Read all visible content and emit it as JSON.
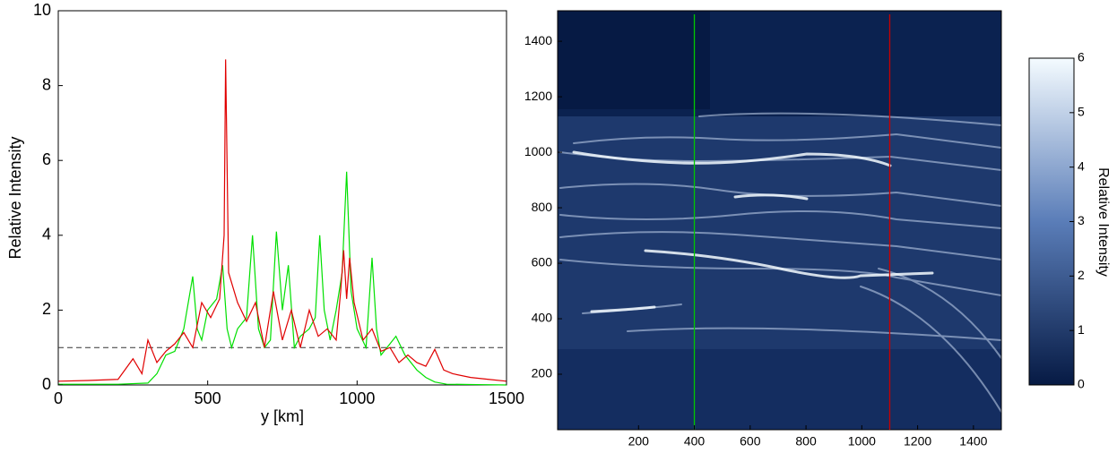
{
  "chart_data": [
    {
      "type": "line",
      "xlabel": "y [km]",
      "ylabel": "Relative Intensity",
      "xlim": [
        0,
        1500
      ],
      "xticks": [
        0,
        500,
        1000,
        1500
      ],
      "ylim": [
        0,
        10
      ],
      "yticks": [
        0,
        2,
        4,
        6,
        8,
        10
      ],
      "hlines": [
        {
          "value": 1,
          "color": "#333333",
          "style": "dashed"
        }
      ],
      "series": [
        {
          "color": "#00e000",
          "x": [
            0,
            100,
            200,
            300,
            330,
            360,
            390,
            420,
            450,
            465,
            480,
            500,
            530,
            550,
            565,
            580,
            600,
            630,
            650,
            670,
            690,
            710,
            730,
            750,
            770,
            790,
            810,
            840,
            860,
            875,
            890,
            910,
            930,
            950,
            965,
            980,
            1000,
            1030,
            1050,
            1065,
            1080,
            1100,
            1130,
            1160,
            1200,
            1230,
            1260,
            1300,
            1400,
            1500
          ],
          "values": [
            0.02,
            0.02,
            0.02,
            0.05,
            0.3,
            0.8,
            0.9,
            1.5,
            2.9,
            1.5,
            1.2,
            2.0,
            2.3,
            3.2,
            1.5,
            1.0,
            1.5,
            1.8,
            4.0,
            1.5,
            1.0,
            1.2,
            4.1,
            2.0,
            3.2,
            1.0,
            1.3,
            1.5,
            1.8,
            4.0,
            2.0,
            1.2,
            2.0,
            3.0,
            5.7,
            2.5,
            1.5,
            1.0,
            3.4,
            1.5,
            0.8,
            1.0,
            1.3,
            0.8,
            0.4,
            0.2,
            0.08,
            0.02,
            0.01,
            0
          ]
        },
        {
          "color": "#e00000",
          "x": [
            0,
            100,
            200,
            250,
            280,
            300,
            330,
            360,
            390,
            420,
            450,
            480,
            510,
            540,
            555,
            560,
            570,
            600,
            630,
            660,
            690,
            720,
            750,
            780,
            810,
            840,
            870,
            900,
            930,
            945,
            955,
            965,
            975,
            990,
            1020,
            1050,
            1080,
            1110,
            1140,
            1170,
            1200,
            1230,
            1260,
            1290,
            1320,
            1380,
            1440,
            1500
          ],
          "values": [
            0.1,
            0.12,
            0.15,
            0.7,
            0.3,
            1.2,
            0.6,
            0.9,
            1.1,
            1.4,
            1.0,
            2.2,
            1.8,
            2.3,
            4.0,
            8.7,
            3.0,
            2.2,
            1.7,
            2.2,
            1.0,
            2.5,
            1.2,
            2.0,
            1.0,
            2.0,
            1.3,
            1.5,
            1.2,
            2.5,
            3.6,
            2.3,
            3.4,
            2.2,
            1.2,
            1.5,
            0.9,
            1.0,
            0.6,
            0.8,
            0.6,
            0.5,
            0.95,
            0.4,
            0.3,
            0.2,
            0.15,
            0.1
          ]
        }
      ]
    },
    {
      "type": "heatmap",
      "colorbar_label": "Relative Intensity",
      "xlim": [
        -90,
        1500
      ],
      "xticks": [
        200,
        400,
        600,
        800,
        1000,
        1200,
        1400
      ],
      "ylim": [
        0,
        1510
      ],
      "yticks": [
        200,
        400,
        600,
        800,
        1000,
        1200,
        1400
      ],
      "clim": [
        0,
        6
      ],
      "cticks": [
        0,
        1,
        2,
        3,
        4,
        5,
        6
      ],
      "colormap": [
        "#061a44",
        "#5a7db8",
        "#f4fbff"
      ],
      "vlines": [
        {
          "value": 400,
          "color": "#00c800"
        },
        {
          "value": 1100,
          "color": "#c80000"
        }
      ]
    }
  ]
}
